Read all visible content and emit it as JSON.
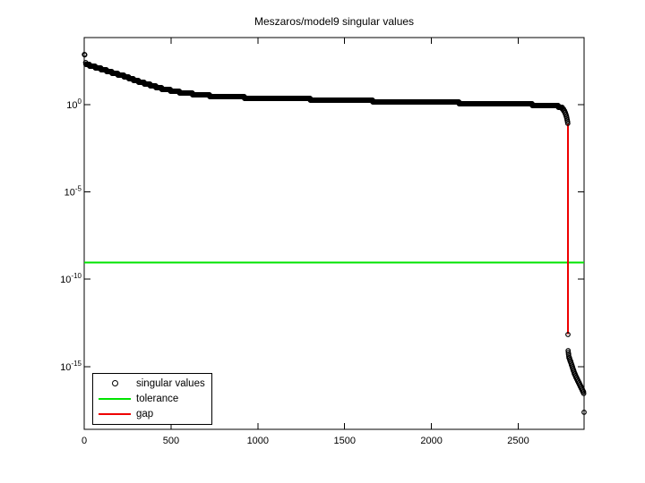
{
  "chart_data": {
    "type": "scatter",
    "title": "Meszaros/model9 singular values",
    "xlabel": "",
    "ylabel": "",
    "grid": false,
    "legend_position": "south-west-inside",
    "xlim": [
      0,
      2879
    ],
    "ylim_log10": [
      -18.6,
      3.85
    ],
    "xticks": [
      {
        "value": 0,
        "label": "0"
      },
      {
        "value": 500,
        "label": "500"
      },
      {
        "value": 1000,
        "label": "1000"
      },
      {
        "value": 1500,
        "label": "1500"
      },
      {
        "value": 2000,
        "label": "2000"
      },
      {
        "value": 2500,
        "label": "2500"
      }
    ],
    "yticks": [
      {
        "log10": 0,
        "base": "10",
        "exponent": "0"
      },
      {
        "log10": -5,
        "base": "10",
        "exponent": "-5"
      },
      {
        "log10": -10,
        "base": "10",
        "exponent": "-10"
      },
      {
        "log10": -15,
        "base": "10",
        "exponent": "-15"
      }
    ],
    "n_points": 2879,
    "tolerance_value": 9e-10,
    "tolerance_log10": -9.05,
    "tolerance_color": "#00e400",
    "gap_color": "#ee0000",
    "gap": {
      "at_index": 2786,
      "from_log10": -1.08,
      "to_log10": -13.15
    },
    "series": {
      "name": "singular values",
      "marker": "o",
      "color": "#000000",
      "segments_log10": [
        {
          "name": "top-outlier",
          "points": [
            [
              1,
              2.88
            ],
            [
              3,
              2.86
            ]
          ]
        },
        {
          "name": "above-tolerance",
          "points": [
            [
              8,
              2.38
            ],
            [
              10,
              2.36
            ],
            [
              31,
              2.26
            ],
            [
              83,
              2.1
            ],
            [
              160,
              1.85
            ],
            [
              237,
              1.62
            ],
            [
              299,
              1.38
            ],
            [
              351,
              1.22
            ],
            [
              397,
              1.08
            ],
            [
              449,
              0.92
            ],
            [
              500,
              0.82
            ],
            [
              560,
              0.7
            ],
            [
              624,
              0.62
            ],
            [
              700,
              0.53
            ],
            [
              779,
              0.49
            ],
            [
              934,
              0.41
            ],
            [
              1243,
              0.33
            ],
            [
              1700,
              0.2
            ],
            [
              2100,
              0.12
            ],
            [
              2400,
              0.06
            ],
            [
              2600,
              0.0
            ],
            [
              2714,
              -0.05
            ],
            [
              2750,
              -0.15
            ],
            [
              2766,
              -0.36
            ],
            [
              2776,
              -0.62
            ],
            [
              2781,
              -0.82
            ],
            [
              2785,
              -1.08
            ]
          ]
        },
        {
          "name": "below-tolerance",
          "points": [
            [
              2786,
              -13.15
            ],
            [
              2787,
              -14.07
            ],
            [
              2791,
              -14.43
            ],
            [
              2802,
              -14.74
            ],
            [
              2812,
              -15.05
            ],
            [
              2822,
              -15.36
            ],
            [
              2838,
              -15.72
            ],
            [
              2853,
              -16.02
            ],
            [
              2863,
              -16.23
            ],
            [
              2874,
              -16.44
            ],
            [
              2877,
              -16.52
            ]
          ]
        },
        {
          "name": "bottom-outlier",
          "points": [
            [
              2879,
              -17.62
            ]
          ]
        }
      ]
    },
    "legend": [
      {
        "label": "singular values",
        "swatch": "circle-marker",
        "color": "#000000"
      },
      {
        "label": "tolerance",
        "swatch": "line",
        "color": "#00e400"
      },
      {
        "label": "gap",
        "swatch": "line",
        "color": "#ee0000"
      }
    ]
  }
}
